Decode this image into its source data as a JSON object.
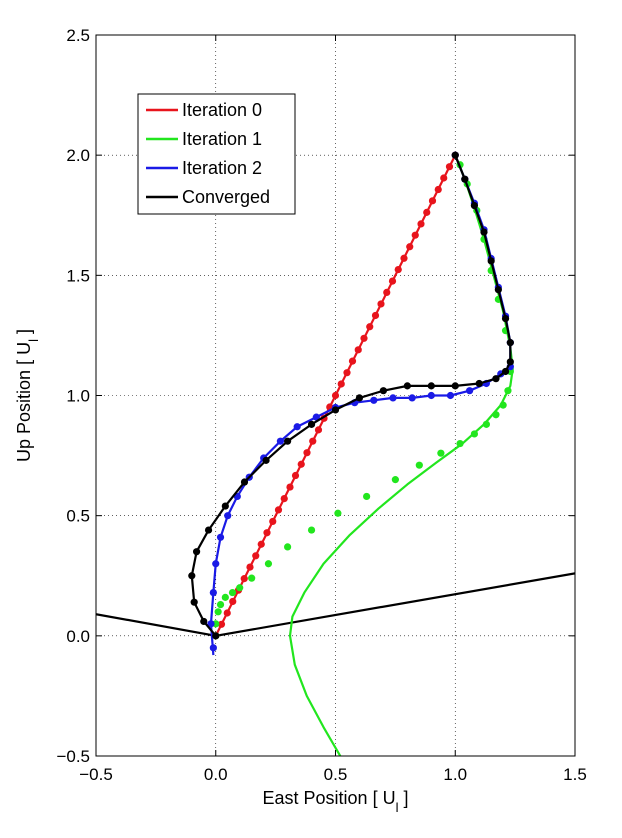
{
  "chart_data": {
    "type": "line",
    "xlabel": "East Position [ U",
    "xlabel_sub": "l",
    "xlabel_end": " ]",
    "ylabel": "Up Position [ U",
    "ylabel_sub": "l",
    "ylabel_end": " ]",
    "xlim": [
      -0.5,
      1.5
    ],
    "ylim": [
      -0.5,
      2.5
    ],
    "xticks": [
      -0.5,
      0,
      0.5,
      1,
      1.5
    ],
    "xtick_labels": [
      "−0.5",
      "0.0",
      "0.5",
      "1.0",
      "1.5"
    ],
    "yticks": [
      -0.5,
      0,
      0.5,
      1,
      1.5,
      2,
      2.5
    ],
    "ytick_labels": [
      "−0.5",
      "0.0",
      "0.5",
      "1.0",
      "1.5",
      "2.0",
      "2.5"
    ],
    "grid": true,
    "grid_style": "dotted",
    "legend_position": "upper-left",
    "legend": [
      {
        "name": "Iteration 0",
        "color": "#e8141c"
      },
      {
        "name": "Iteration 1",
        "color": "#22e61e"
      },
      {
        "name": "Iteration 2",
        "color": "#1a1ae6"
      },
      {
        "name": "Converged",
        "color": "#000000"
      }
    ],
    "boundary": {
      "color": "#000000",
      "x": [
        -0.5,
        0.0,
        1.5
      ],
      "y": [
        0.09,
        0.0,
        0.26
      ]
    },
    "series": [
      {
        "name": "Iteration 0",
        "color": "#e8141c",
        "x": [
          0.0,
          0.5,
          1.0
        ],
        "y": [
          0.0,
          1.0,
          2.0
        ],
        "markers": {
          "x": [
            0.0,
            0.024,
            0.048,
            0.071,
            0.095,
            0.119,
            0.143,
            0.167,
            0.19,
            0.214,
            0.238,
            0.262,
            0.286,
            0.31,
            0.333,
            0.357,
            0.381,
            0.405,
            0.429,
            0.452,
            0.476,
            0.5,
            0.524,
            0.548,
            0.571,
            0.595,
            0.619,
            0.643,
            0.667,
            0.69,
            0.714,
            0.738,
            0.762,
            0.786,
            0.81,
            0.833,
            0.857,
            0.881,
            0.905,
            0.929,
            0.952,
            0.976,
            1.0
          ],
          "y": [
            0.0,
            0.048,
            0.095,
            0.143,
            0.19,
            0.238,
            0.286,
            0.333,
            0.381,
            0.429,
            0.476,
            0.524,
            0.571,
            0.619,
            0.667,
            0.714,
            0.762,
            0.81,
            0.857,
            0.905,
            0.952,
            1.0,
            1.048,
            1.095,
            1.143,
            1.19,
            1.238,
            1.286,
            1.333,
            1.381,
            1.429,
            1.476,
            1.524,
            1.571,
            1.619,
            1.667,
            1.714,
            1.762,
            1.81,
            1.857,
            1.905,
            1.952,
            2.0
          ]
        }
      },
      {
        "name": "Iteration 1",
        "color": "#22e61e",
        "x": [
          0.52,
          0.45,
          0.38,
          0.33,
          0.31,
          0.32,
          0.37,
          0.45,
          0.56,
          0.68,
          0.8,
          0.92,
          1.03,
          1.12,
          1.19,
          1.23,
          1.24,
          1.23,
          1.2,
          1.16,
          1.12,
          1.08,
          1.04,
          1.0
        ],
        "y": [
          -0.5,
          -0.38,
          -0.25,
          -0.12,
          0.0,
          0.08,
          0.18,
          0.3,
          0.42,
          0.53,
          0.63,
          0.72,
          0.8,
          0.88,
          0.96,
          1.04,
          1.11,
          1.2,
          1.35,
          1.5,
          1.65,
          1.78,
          1.9,
          2.0
        ],
        "markers": {
          "x": [
            0.0,
            0.0,
            0.01,
            0.02,
            0.04,
            0.07,
            0.1,
            0.15,
            0.22,
            0.3,
            0.4,
            0.51,
            0.63,
            0.75,
            0.85,
            0.94,
            1.02,
            1.08,
            1.13,
            1.17,
            1.2,
            1.22,
            1.23,
            1.21,
            1.18,
            1.15,
            1.12,
            1.09,
            1.05,
            1.02
          ],
          "y": [
            0.0,
            0.05,
            0.1,
            0.13,
            0.16,
            0.18,
            0.2,
            0.24,
            0.3,
            0.37,
            0.44,
            0.51,
            0.58,
            0.65,
            0.71,
            0.76,
            0.8,
            0.84,
            0.88,
            0.92,
            0.96,
            1.02,
            1.1,
            1.27,
            1.4,
            1.52,
            1.65,
            1.77,
            1.88,
            1.96
          ]
        }
      },
      {
        "name": "Iteration 2",
        "color": "#1a1ae6",
        "x": [
          -0.01,
          -0.02,
          -0.01,
          0.0,
          0.02,
          0.05,
          0.09,
          0.14,
          0.2,
          0.27,
          0.34,
          0.42,
          0.5,
          0.58,
          0.66,
          0.74,
          0.82,
          0.9,
          0.98,
          1.06,
          1.13,
          1.19,
          1.23,
          1.23,
          1.21,
          1.18,
          1.15,
          1.12,
          1.08,
          1.04,
          1.0
        ],
        "y": [
          -0.08,
          0.05,
          0.18,
          0.3,
          0.41,
          0.5,
          0.58,
          0.66,
          0.74,
          0.81,
          0.87,
          0.91,
          0.95,
          0.97,
          0.98,
          0.99,
          0.99,
          1.0,
          1.0,
          1.02,
          1.05,
          1.09,
          1.12,
          1.22,
          1.33,
          1.45,
          1.57,
          1.69,
          1.8,
          1.9,
          2.0
        ],
        "markers": {
          "x": [
            -0.01,
            -0.02,
            -0.01,
            0.0,
            0.02,
            0.05,
            0.09,
            0.14,
            0.2,
            0.27,
            0.34,
            0.42,
            0.5,
            0.58,
            0.66,
            0.74,
            0.82,
            0.9,
            0.98,
            1.06,
            1.13,
            1.19,
            1.23,
            1.23,
            1.21,
            1.18,
            1.15,
            1.12,
            1.08,
            1.04,
            1.0
          ],
          "y": [
            -0.05,
            0.05,
            0.18,
            0.3,
            0.41,
            0.5,
            0.58,
            0.66,
            0.74,
            0.81,
            0.87,
            0.91,
            0.95,
            0.97,
            0.98,
            0.99,
            0.99,
            1.0,
            1.0,
            1.02,
            1.05,
            1.09,
            1.12,
            1.22,
            1.33,
            1.45,
            1.57,
            1.69,
            1.8,
            1.9,
            2.0
          ]
        }
      },
      {
        "name": "Converged",
        "color": "#000000",
        "x": [
          0.0,
          -0.05,
          -0.09,
          -0.1,
          -0.08,
          -0.03,
          0.04,
          0.12,
          0.21,
          0.3,
          0.4,
          0.5,
          0.6,
          0.7,
          0.8,
          0.9,
          1.0,
          1.1,
          1.17,
          1.21,
          1.23,
          1.23,
          1.21,
          1.18,
          1.15,
          1.12,
          1.08,
          1.04,
          1.0
        ],
        "y": [
          0.0,
          0.06,
          0.14,
          0.25,
          0.35,
          0.44,
          0.54,
          0.64,
          0.73,
          0.81,
          0.88,
          0.94,
          0.99,
          1.02,
          1.04,
          1.04,
          1.04,
          1.05,
          1.07,
          1.1,
          1.14,
          1.22,
          1.32,
          1.44,
          1.56,
          1.68,
          1.79,
          1.9,
          2.0
        ],
        "markers": {
          "x": [
            0.0,
            -0.05,
            -0.09,
            -0.1,
            -0.08,
            -0.03,
            0.04,
            0.12,
            0.21,
            0.3,
            0.4,
            0.5,
            0.6,
            0.7,
            0.8,
            0.9,
            1.0,
            1.1,
            1.17,
            1.21,
            1.23,
            1.23,
            1.21,
            1.18,
            1.15,
            1.12,
            1.08,
            1.04,
            1.0
          ],
          "y": [
            0.0,
            0.06,
            0.14,
            0.25,
            0.35,
            0.44,
            0.54,
            0.64,
            0.73,
            0.81,
            0.88,
            0.94,
            0.99,
            1.02,
            1.04,
            1.04,
            1.04,
            1.05,
            1.07,
            1.1,
            1.14,
            1.22,
            1.32,
            1.44,
            1.56,
            1.68,
            1.79,
            1.9,
            2.0
          ]
        }
      }
    ]
  }
}
